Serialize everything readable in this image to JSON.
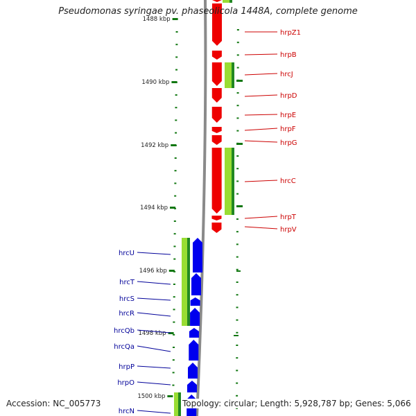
{
  "title": "Pseudomonas syringae pv. phaseolicola 1448A, complete genome",
  "accession": "Accession: NC_005773",
  "summary": "Topology: circular; Length: 5,928,787 bp; Genes: 5,066",
  "colors": {
    "red_genes": "#ee0000",
    "blue_genes": "#0000ee",
    "green_light": "#99dd33",
    "green_dark": "#228822",
    "tick_green": "#117711",
    "backbone": "#8a8a8a",
    "red_label": "#cc0000",
    "blue_label": "#000099"
  },
  "ruler": {
    "unit": "kbp",
    "labels": [
      "1488 kbp",
      "1490 kbp",
      "1492 kbp",
      "1494 kbp",
      "1496 kbp",
      "1498 kbp",
      "1500 kbp"
    ]
  },
  "red_genes": [
    {
      "name": "hrpZ1"
    },
    {
      "name": "hrpB"
    },
    {
      "name": "hrcJ"
    },
    {
      "name": "hrpD"
    },
    {
      "name": "hrpE"
    },
    {
      "name": "hrpF"
    },
    {
      "name": "hrpG"
    },
    {
      "name": "hrcC"
    },
    {
      "name": "hrpT"
    },
    {
      "name": "hrpV"
    }
  ],
  "blue_genes": [
    {
      "name": "hrcU"
    },
    {
      "name": "hrcT"
    },
    {
      "name": "hrcS"
    },
    {
      "name": "hrcR"
    },
    {
      "name": "hrcQb"
    },
    {
      "name": "hrcQa"
    },
    {
      "name": "hrpP"
    },
    {
      "name": "hrpO"
    },
    {
      "name": "hrcN"
    }
  ]
}
